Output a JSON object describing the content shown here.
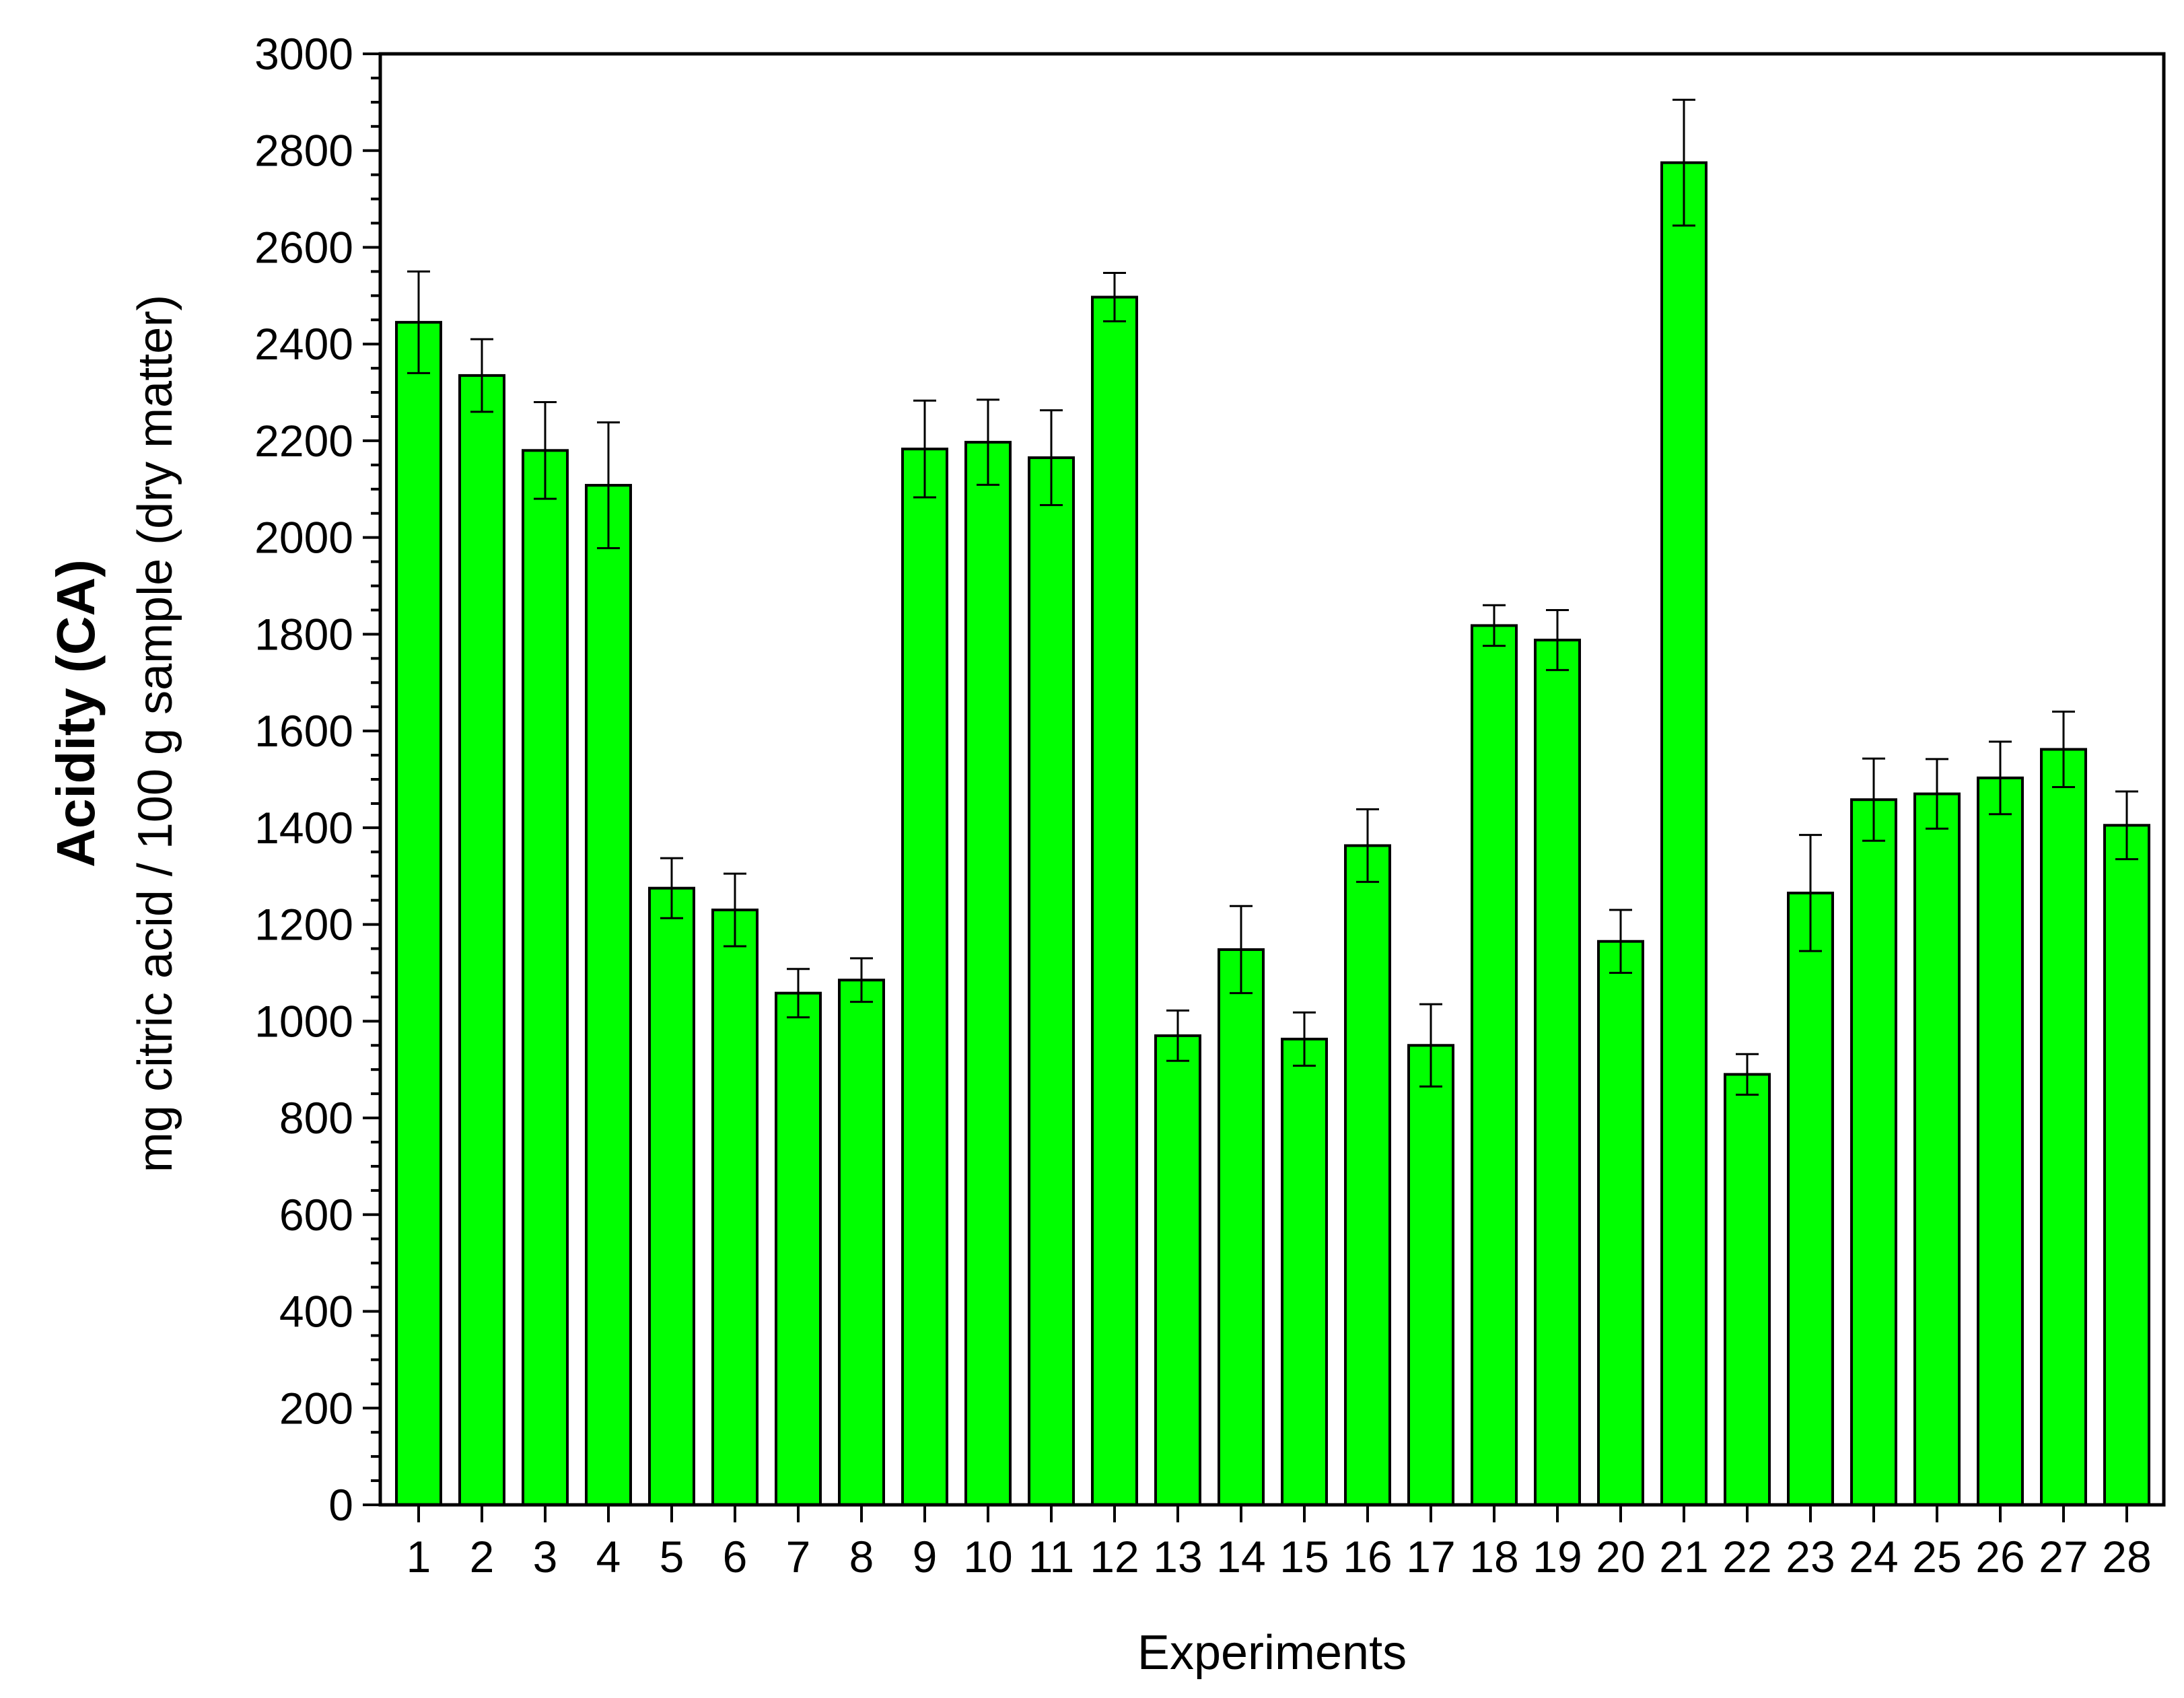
{
  "chart_data": {
    "type": "bar",
    "xlabel": "Experiments",
    "ylabel": "Acidity (CA)",
    "ylabel_units": "mg citric acid / 100 g sample (dry matter)",
    "ylim": [
      0,
      3000
    ],
    "y_major_step": 200,
    "y_minor_step": 50,
    "grid": false,
    "legend": "none",
    "bar_color": "#00FF00",
    "categories": [
      "1",
      "2",
      "3",
      "4",
      "5",
      "6",
      "7",
      "8",
      "9",
      "10",
      "11",
      "12",
      "13",
      "14",
      "15",
      "16",
      "17",
      "18",
      "19",
      "20",
      "21",
      "22",
      "23",
      "24",
      "25",
      "26",
      "27",
      "28"
    ],
    "y_tick_labels": [
      "0",
      "200",
      "400",
      "600",
      "800",
      "1000",
      "1200",
      "1400",
      "1600",
      "1800",
      "2000",
      "2200",
      "2400",
      "2600",
      "2800",
      "3000"
    ],
    "values": [
      2445,
      2335,
      2180,
      2108,
      1275,
      1230,
      1058,
      1085,
      2183,
      2197,
      2165,
      2497,
      970,
      1148,
      963,
      1363,
      950,
      1818,
      1788,
      1165,
      2775,
      890,
      1265,
      1458,
      1470,
      1503,
      1562,
      1405
    ],
    "errors": [
      105,
      75,
      100,
      130,
      62,
      75,
      50,
      45,
      100,
      88,
      98,
      50,
      52,
      90,
      55,
      75,
      85,
      42,
      62,
      65,
      130,
      42,
      120,
      85,
      72,
      75,
      78,
      70
    ]
  }
}
